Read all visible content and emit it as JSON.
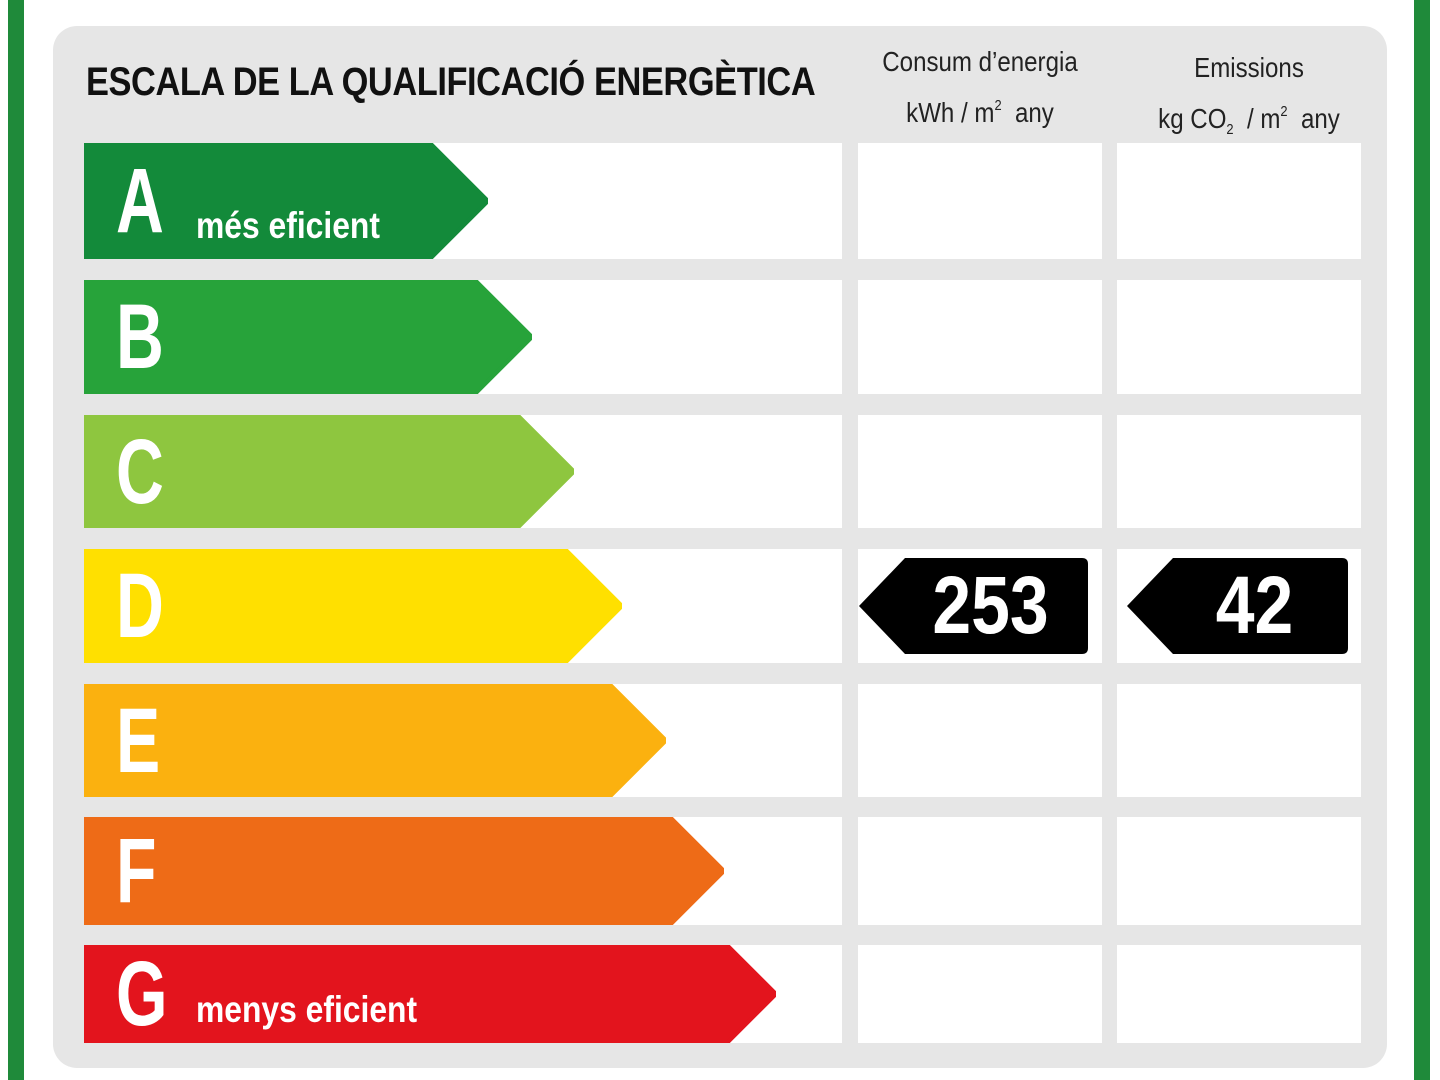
{
  "title": "ESCALA DE LA QUALIFICACIÓ ENERGÈTICA",
  "columns": {
    "energy": {
      "label": "Consum d’energia",
      "unit_prefix": "kWh / m",
      "unit_sup": "2",
      "unit_suffix": "any"
    },
    "emissions": {
      "label": "Emissions",
      "unit_a": "kg CO",
      "unit_sub": "2",
      "unit_b": " / m",
      "unit_sup": "2",
      "unit_suffix": "any"
    }
  },
  "ratings": [
    {
      "letter": "A",
      "sublabel": "més eficient",
      "color": "#138a3a"
    },
    {
      "letter": "B",
      "sublabel": "",
      "color": "#27a33a"
    },
    {
      "letter": "C",
      "sublabel": "",
      "color": "#8ec63f"
    },
    {
      "letter": "D",
      "sublabel": "",
      "color": "#ffe000"
    },
    {
      "letter": "E",
      "sublabel": "",
      "color": "#fbb10f"
    },
    {
      "letter": "F",
      "sublabel": "",
      "color": "#ee6b17"
    },
    {
      "letter": "G",
      "sublabel": "menys eficient",
      "color": "#e3141d"
    }
  ],
  "result": {
    "rating": "D",
    "energy_value": "253",
    "emissions_value": "42"
  },
  "colors": {
    "frame": "#1f8a3a",
    "panel": "#e6e6e6",
    "badge": "#000000"
  }
}
